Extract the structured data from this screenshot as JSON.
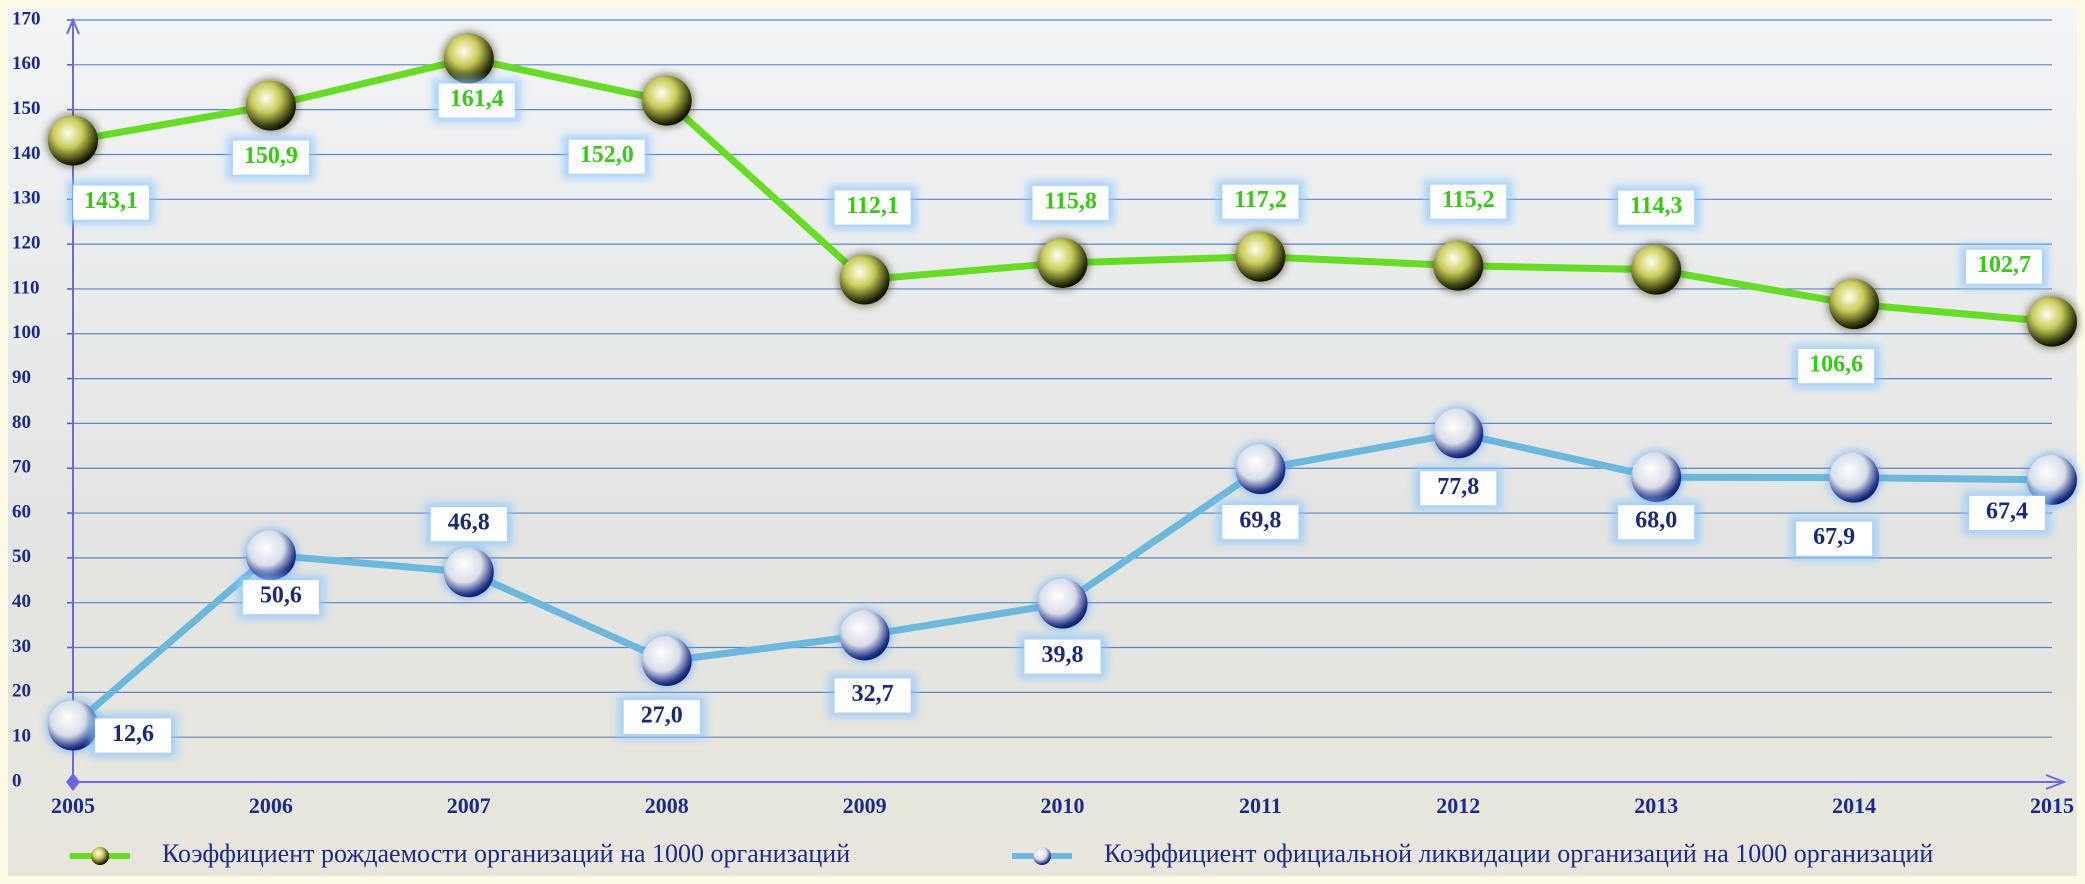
{
  "chart_data": {
    "type": "line",
    "categories": [
      "2005",
      "2006",
      "2007",
      "2008",
      "2009",
      "2010",
      "2011",
      "2012",
      "2013",
      "2014",
      "2015"
    ],
    "series": [
      {
        "name": "Коэффициент рождаемости организаций на 1000 организаций",
        "color": "#66dd22",
        "values": [
          143.1,
          150.9,
          161.4,
          152.0,
          112.1,
          115.8,
          117.2,
          115.2,
          114.3,
          106.6,
          102.7
        ],
        "value_labels": [
          "143,1",
          "150,9",
          "161,4",
          "152,0",
          "112,1",
          "115,8",
          "117,2",
          "115,2",
          "114,3",
          "106,6",
          "102,7"
        ]
      },
      {
        "name": "Коэффициент официальной ликвидации организаций на 1000 организаций",
        "color": "#6bb8dc",
        "values": [
          12.6,
          50.6,
          46.8,
          27.0,
          32.7,
          39.8,
          69.8,
          77.8,
          68.0,
          67.9,
          67.4
        ],
        "value_labels": [
          "12,6",
          "50,6",
          "46,8",
          "27,0",
          "32,7",
          "39,8",
          "69,8",
          "77,8",
          "68,0",
          "67,9",
          "67,4"
        ]
      }
    ],
    "ylim": [
      0,
      170
    ],
    "yticks": [
      0,
      10,
      20,
      30,
      40,
      50,
      60,
      70,
      80,
      90,
      100,
      110,
      120,
      130,
      140,
      150,
      160,
      170
    ],
    "grid": true
  }
}
